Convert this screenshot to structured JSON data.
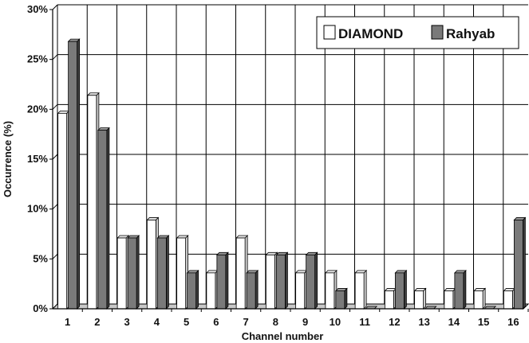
{
  "chart_data": {
    "type": "bar",
    "categories": [
      "1",
      "2",
      "3",
      "4",
      "5",
      "6",
      "7",
      "8",
      "9",
      "10",
      "11",
      "12",
      "13",
      "14",
      "15",
      "16"
    ],
    "series": [
      {
        "name": "DIAMOND",
        "values": [
          19.6,
          21.4,
          7.1,
          8.9,
          7.1,
          3.6,
          7.1,
          5.4,
          3.6,
          3.6,
          3.6,
          1.8,
          1.8,
          1.8,
          1.8,
          1.8
        ]
      },
      {
        "name": "Rahyab",
        "values": [
          26.8,
          17.9,
          7.1,
          7.1,
          3.6,
          5.4,
          3.6,
          5.4,
          5.4,
          1.8,
          0,
          3.6,
          0,
          3.6,
          0,
          8.9
        ]
      }
    ],
    "colors": {
      "DIAMOND": "#ffffff",
      "Rahyab": "#7a7a7a"
    },
    "xlabel": "Channel number",
    "ylabel": "Occurrence (%)",
    "ylim": [
      0,
      30
    ],
    "yticks": [
      0,
      5,
      10,
      15,
      20,
      25,
      30
    ],
    "ytick_labels": [
      "0%",
      "5%",
      "10%",
      "15%",
      "20%",
      "25%",
      "30%"
    ],
    "grid": true,
    "legend_position": "top-right"
  }
}
